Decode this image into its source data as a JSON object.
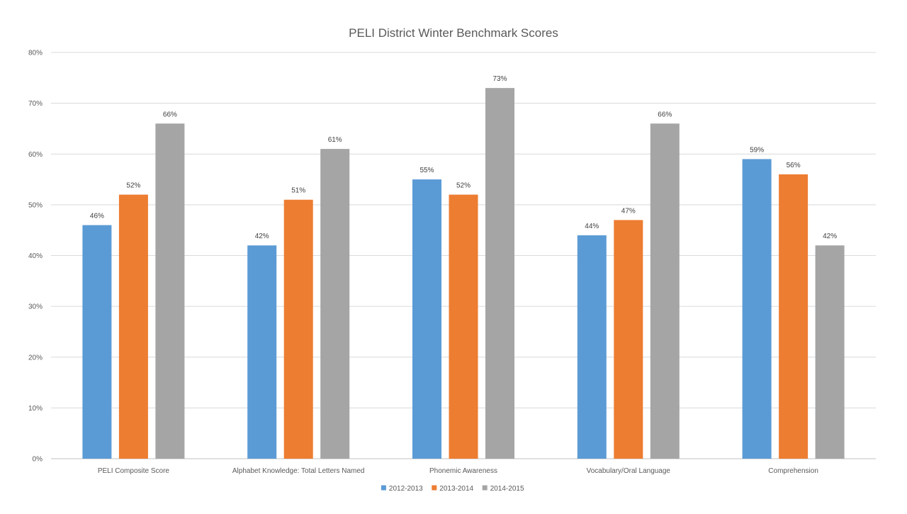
{
  "chart_data": {
    "type": "bar",
    "title": "PELI District Winter Benchmark Scores",
    "xlabel": "",
    "ylabel": "",
    "categories": [
      "PELI Composite Score",
      "Alphabet Knowledge: Total Letters Named",
      "Phonemic Awareness",
      "Vocabulary/Oral Language",
      "Comprehension"
    ],
    "series": [
      {
        "name": "2012-2013",
        "color": "#5B9BD5",
        "values": [
          46,
          42,
          55,
          44,
          59
        ],
        "labels": [
          "46%",
          "42%",
          "55%",
          "44%",
          "59%"
        ]
      },
      {
        "name": "2013-2014",
        "color": "#ED7D31",
        "values": [
          52,
          51,
          52,
          47,
          56
        ],
        "labels": [
          "52%",
          "51%",
          "52%",
          "47%",
          "56%"
        ]
      },
      {
        "name": "2014-2015",
        "color": "#A5A5A5",
        "values": [
          66,
          61,
          73,
          66,
          42
        ],
        "labels": [
          "66%",
          "61%",
          "73%",
          "66%",
          "42%"
        ]
      }
    ],
    "ylim": [
      0,
      80
    ],
    "yticks": [
      "0%",
      "10%",
      "20%",
      "30%",
      "40%",
      "50%",
      "60%",
      "70%",
      "80%"
    ],
    "grid": true,
    "legend_position": "bottom"
  }
}
